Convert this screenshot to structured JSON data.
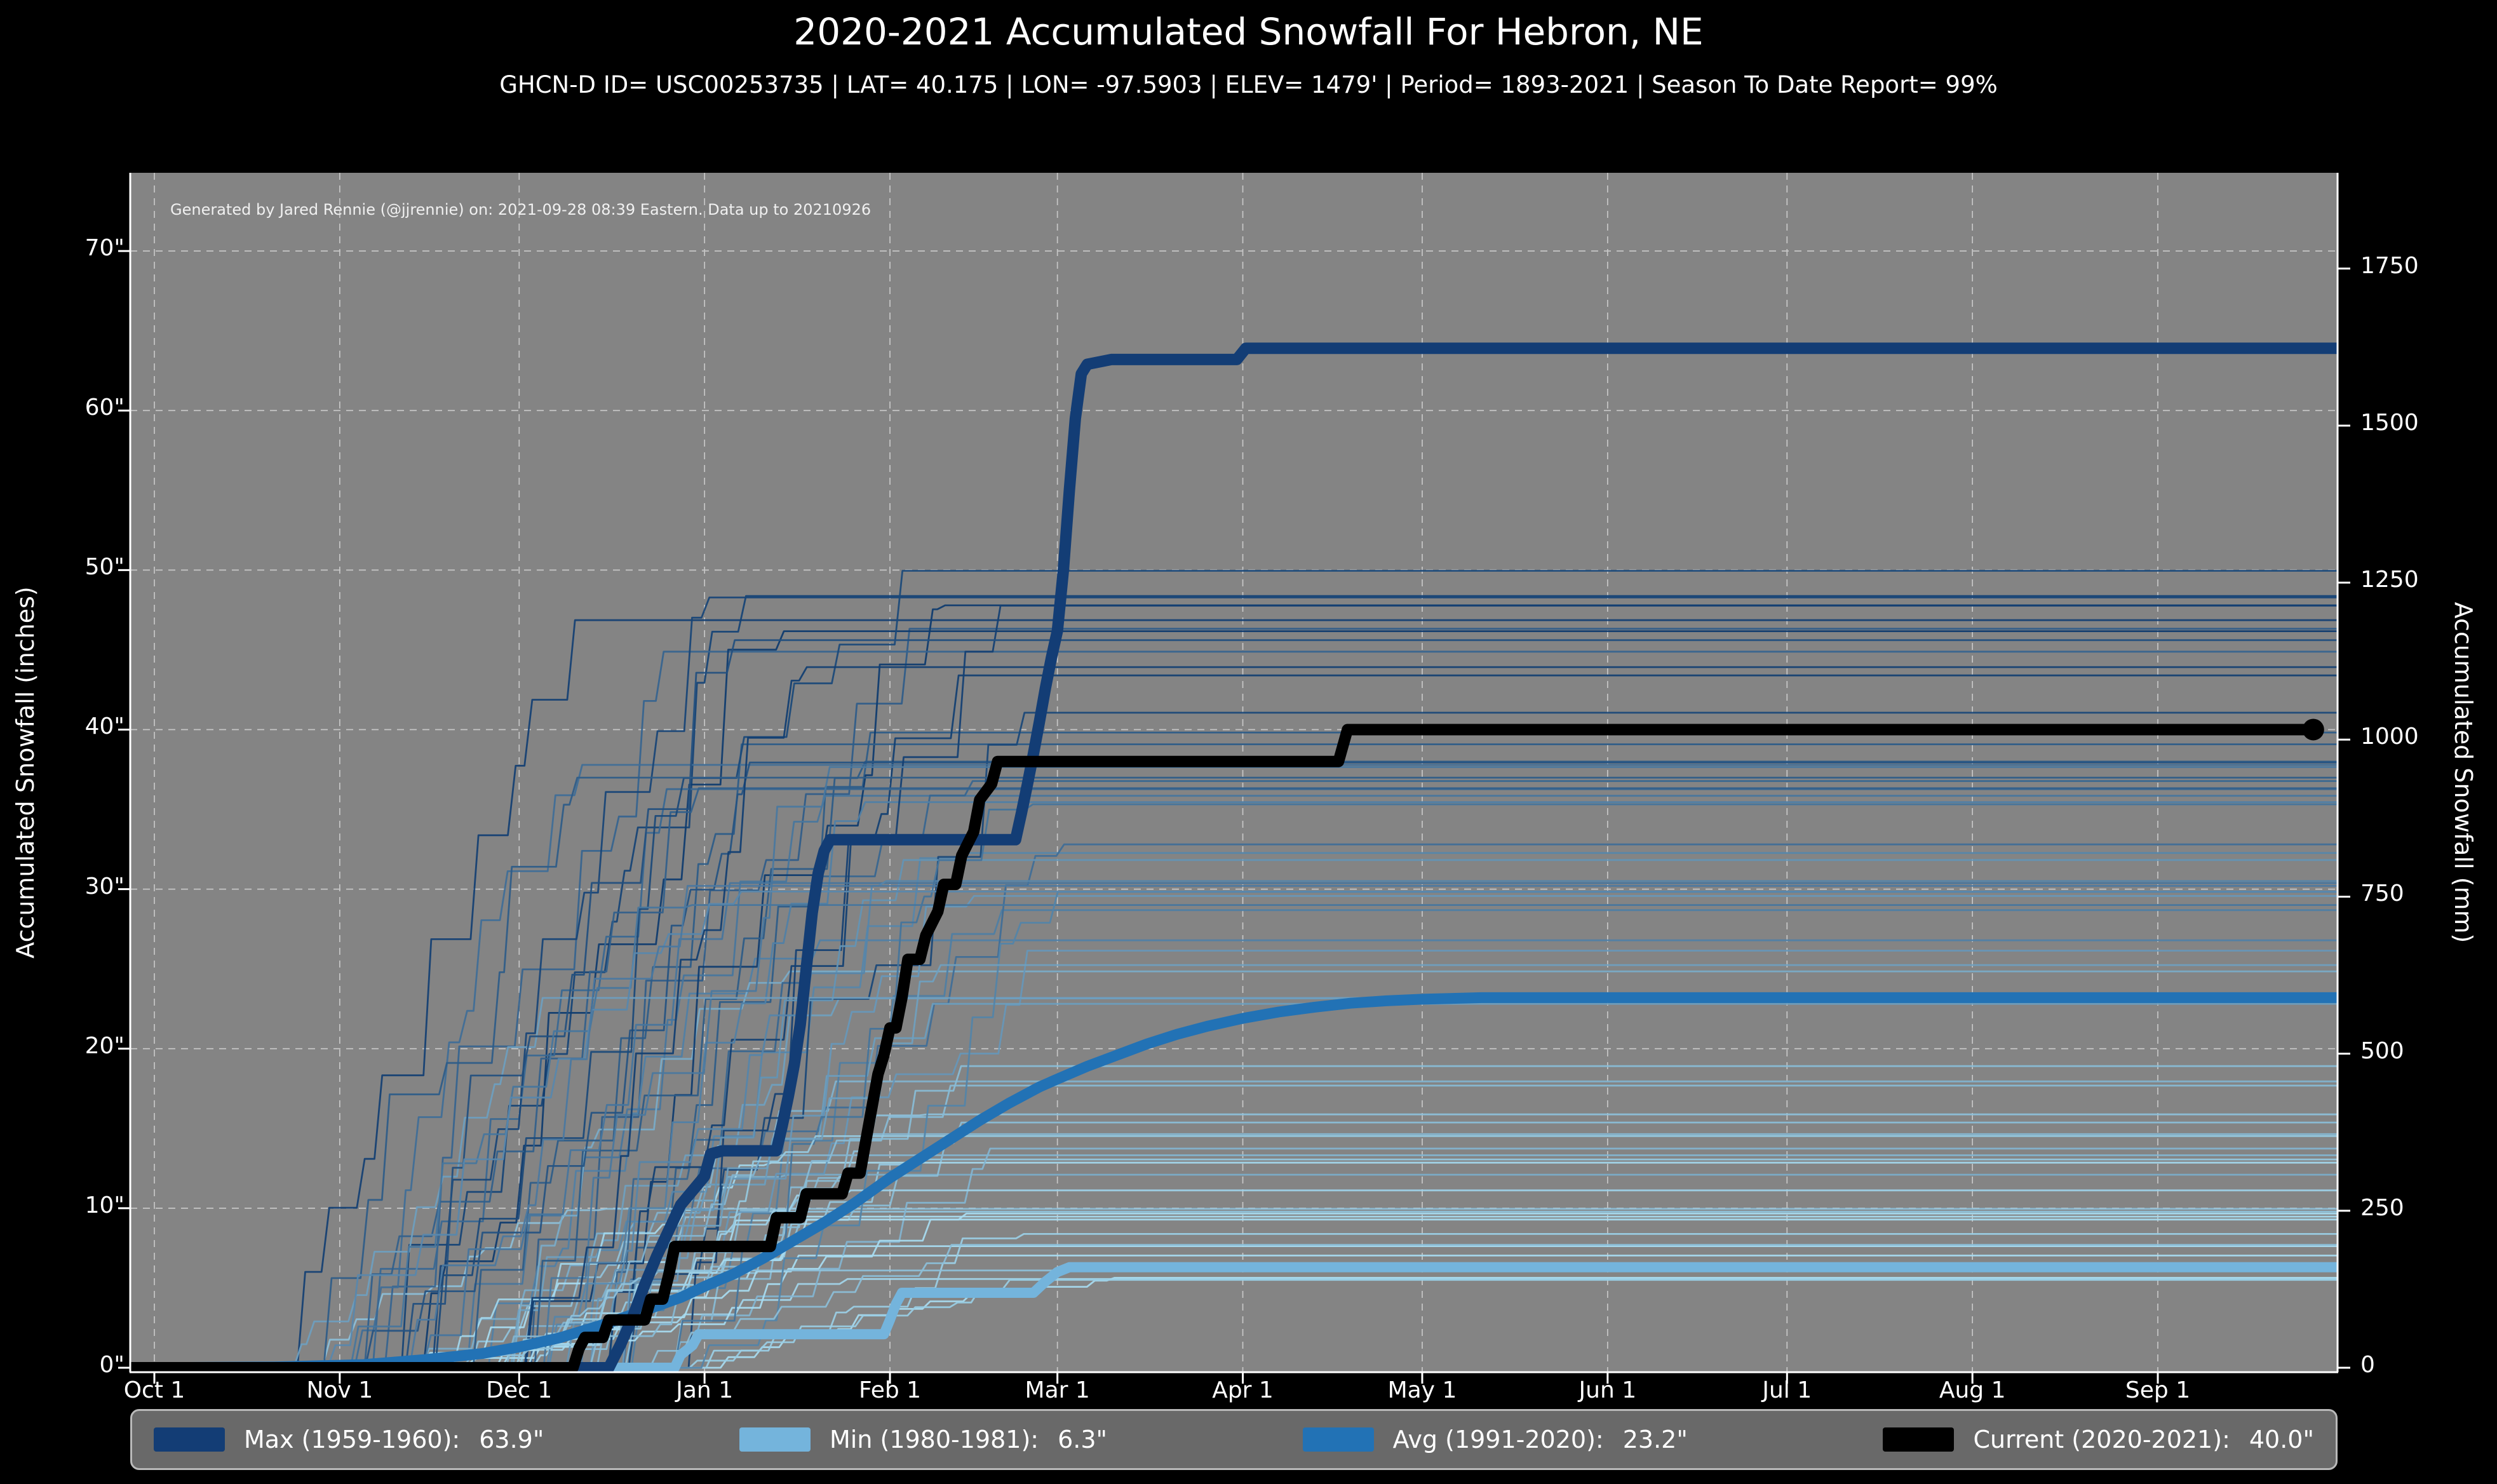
{
  "title": "2020-2021 Accumulated Snowfall For Hebron, NE",
  "subtitle": "GHCN-D ID= USC00253735 | LAT= 40.175 | LON= -97.5903 | ELEV= 1479' | Period= 1893-2021 | Season To Date Report= 99%",
  "attribution": "Generated by Jared Rennie (@jjrennie) on: 2021-09-28 08:39 Eastern. Data up to 20210926",
  "colors": {
    "figure_bg": "#000000",
    "plot_bg": "#848484",
    "grid": "#d8d8d8",
    "spine": "#ffffff",
    "text": "#ffffff",
    "max": "#133d75",
    "min": "#74b4dc",
    "avg": "#2272b5",
    "current": "#000000",
    "ensemble_dark": "#0d3a6e",
    "ensemble_light": "#a8dcf0",
    "legend_bg": "#696969",
    "legend_border": "#b9b9b9"
  },
  "legend": [
    {
      "series": "max",
      "label": "Max (1959-1960):",
      "value": "63.9\""
    },
    {
      "series": "min",
      "label": "Min (1980-1981):",
      "value": "6.3\""
    },
    {
      "series": "avg",
      "label": "Avg (1991-2020):",
      "value": "23.2\""
    },
    {
      "series": "current",
      "label": "Current (2020-2021):",
      "value": "40.0\""
    }
  ],
  "chart_data": {
    "type": "line",
    "title": "2020-2021 Accumulated Snowfall For Hebron, NE",
    "grid": true,
    "axes": {
      "left": {
        "label": "Accumulated Snowfall (inches)",
        "tick_labels": [
          "0\"",
          "10\"",
          "20\"",
          "30\"",
          "40\"",
          "50\"",
          "60\"",
          "70\""
        ],
        "tick_values": [
          0,
          10,
          20,
          30,
          40,
          50,
          60,
          70
        ],
        "range": [
          0,
          74.9
        ]
      },
      "right": {
        "label": "Accumulated Snowfall (mm)",
        "tick_labels": [
          "0",
          "250",
          "500",
          "750",
          "1000",
          "1250",
          "1500",
          "1750"
        ],
        "tick_values": [
          0,
          250,
          500,
          750,
          1000,
          1250,
          1500,
          1750
        ],
        "range": [
          0,
          1902
        ]
      },
      "x": {
        "tick_labels": [
          "Oct 1",
          "Nov 1",
          "Dec 1",
          "Jan 1",
          "Feb 1",
          "Mar 1",
          "Apr 1",
          "May 1",
          "Jun 1",
          "Jul 1",
          "Aug 1",
          "Sep 1"
        ],
        "tick_days": [
          0,
          31,
          61,
          92,
          123,
          151,
          182,
          212,
          243,
          273,
          304,
          335
        ],
        "range_days": [
          -4,
          365
        ]
      }
    },
    "series": [
      {
        "name": "Max (1959-1960)",
        "season_total": 63.9,
        "color_key": "max",
        "stroke_width": 18,
        "points": [
          [
            -4,
            0
          ],
          [
            76,
            0
          ],
          [
            78,
            1.5
          ],
          [
            80,
            3.2
          ],
          [
            82,
            5.2
          ],
          [
            84,
            7.0
          ],
          [
            86,
            8.6
          ],
          [
            88,
            10.2
          ],
          [
            90,
            11.1
          ],
          [
            92,
            12.0
          ],
          [
            93,
            13.4
          ],
          [
            95,
            13.6
          ],
          [
            104,
            13.6
          ],
          [
            105,
            15.2
          ],
          [
            106,
            17.0
          ],
          [
            107,
            19.0
          ],
          [
            108,
            21.5
          ],
          [
            109,
            25.0
          ],
          [
            110,
            28.5
          ],
          [
            111,
            31.0
          ],
          [
            112,
            32.4
          ],
          [
            113,
            33.1
          ],
          [
            144,
            33.1
          ],
          [
            145,
            34.8
          ],
          [
            146,
            36.6
          ],
          [
            147,
            38.5
          ],
          [
            148,
            40.5
          ],
          [
            149,
            42.6
          ],
          [
            150,
            44.5
          ],
          [
            151,
            46.2
          ],
          [
            152,
            50.0
          ],
          [
            153,
            55.0
          ],
          [
            154,
            59.5
          ],
          [
            155,
            62.3
          ],
          [
            156,
            62.9
          ],
          [
            160,
            63.2
          ],
          [
            181,
            63.2
          ],
          [
            182.5,
            63.9
          ],
          [
            365,
            63.9
          ]
        ]
      },
      {
        "name": "Min (1980-1981)",
        "season_total": 6.3,
        "color_key": "min",
        "stroke_width": 16,
        "points": [
          [
            -4,
            0
          ],
          [
            87,
            0
          ],
          [
            88,
            0.8
          ],
          [
            90,
            1.4
          ],
          [
            91,
            2.1
          ],
          [
            122,
            2.1
          ],
          [
            123,
            3.0
          ],
          [
            124,
            4.0
          ],
          [
            125,
            4.7
          ],
          [
            147,
            4.7
          ],
          [
            149,
            5.4
          ],
          [
            151,
            6.0
          ],
          [
            153,
            6.3
          ],
          [
            365,
            6.3
          ]
        ]
      },
      {
        "name": "Avg (1991-2020)",
        "season_total": 23.2,
        "color_key": "avg",
        "stroke_width": 17,
        "points": [
          [
            -4,
            0
          ],
          [
            20,
            0.05
          ],
          [
            35,
            0.2
          ],
          [
            45,
            0.5
          ],
          [
            55,
            0.9
          ],
          [
            61,
            1.3
          ],
          [
            68,
            1.9
          ],
          [
            75,
            2.7
          ],
          [
            82,
            3.6
          ],
          [
            88,
            4.4
          ],
          [
            92,
            5.1
          ],
          [
            97,
            5.9
          ],
          [
            102,
            6.9
          ],
          [
            107,
            8.0
          ],
          [
            112,
            9.1
          ],
          [
            117,
            10.3
          ],
          [
            123,
            11.9
          ],
          [
            128,
            13.1
          ],
          [
            133,
            14.3
          ],
          [
            138,
            15.5
          ],
          [
            143,
            16.6
          ],
          [
            148,
            17.6
          ],
          [
            151,
            18.1
          ],
          [
            156,
            18.9
          ],
          [
            161,
            19.6
          ],
          [
            166,
            20.3
          ],
          [
            171,
            20.9
          ],
          [
            176,
            21.4
          ],
          [
            182,
            21.9
          ],
          [
            188,
            22.3
          ],
          [
            194,
            22.6
          ],
          [
            200,
            22.85
          ],
          [
            206,
            23.0
          ],
          [
            212,
            23.1
          ],
          [
            222,
            23.2
          ],
          [
            365,
            23.2
          ]
        ]
      },
      {
        "name": "Current (2020-2021)",
        "season_total": 40.0,
        "color_key": "current",
        "stroke_width": 18,
        "end_dot": [
          361,
          40.0
        ],
        "points": [
          [
            -4,
            0
          ],
          [
            70,
            0
          ],
          [
            71,
            1.2
          ],
          [
            72,
            1.9
          ],
          [
            75,
            1.9
          ],
          [
            76,
            3.0
          ],
          [
            82,
            3.0
          ],
          [
            83,
            4.3
          ],
          [
            85,
            4.3
          ],
          [
            86,
            5.8
          ],
          [
            87,
            7.6
          ],
          [
            103,
            7.6
          ],
          [
            104,
            9.4
          ],
          [
            108,
            9.4
          ],
          [
            109,
            10.9
          ],
          [
            115,
            10.9
          ],
          [
            116,
            12.2
          ],
          [
            118,
            12.2
          ],
          [
            119,
            14.3
          ],
          [
            121,
            18.4
          ],
          [
            122,
            19.6
          ],
          [
            123,
            21.3
          ],
          [
            124,
            21.3
          ],
          [
            125,
            23.2
          ],
          [
            126,
            25.6
          ],
          [
            128,
            25.6
          ],
          [
            129,
            27.1
          ],
          [
            131,
            28.6
          ],
          [
            132,
            30.3
          ],
          [
            134,
            30.3
          ],
          [
            135,
            32.1
          ],
          [
            137,
            33.6
          ],
          [
            138,
            35.6
          ],
          [
            140,
            36.6
          ],
          [
            141,
            38.0
          ],
          [
            198,
            38.0
          ],
          [
            199.5,
            40.0
          ],
          [
            361,
            40.0
          ]
        ]
      }
    ],
    "ensemble": {
      "note": "thin background lines = each season 1893-2021, shaded light (low totals) to dark (high totals)",
      "count": 70,
      "seed": 7,
      "final_range_inches": [
        5.5,
        51
      ],
      "start_day_range": [
        18,
        88
      ],
      "stroke_width": 2.8
    }
  }
}
